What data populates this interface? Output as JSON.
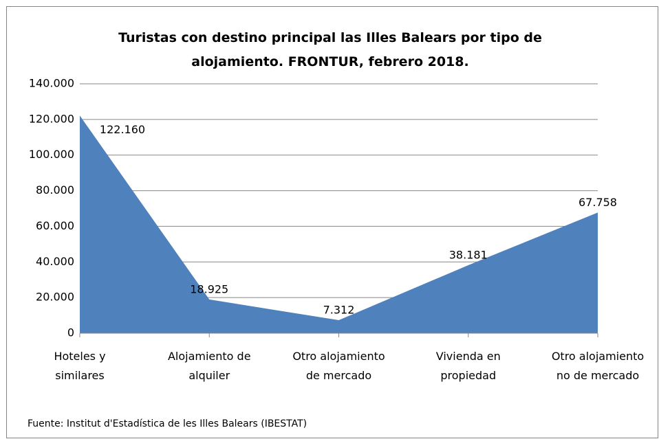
{
  "chart_data": {
    "type": "area",
    "title": "Turistas con destino principal las Illes Balears por tipo de alojamiento. FRONTUR, febrero 2018.",
    "categories": [
      "Hoteles y similares",
      "Alojamiento de alquiler",
      "Otro alojamiento de mercado",
      "Vivienda en propiedad",
      "Otro alojamiento no de mercado"
    ],
    "values": [
      122160,
      18925,
      7312,
      38181,
      67758
    ],
    "value_labels": [
      "122.160",
      "18.925",
      "7.312",
      "38.181",
      "67.758"
    ],
    "color": "#4f81bd",
    "ylim": [
      0,
      140000
    ],
    "yticks": [
      0,
      {
        "value": 20000,
        "label": "20.000"
      },
      {
        "value": 40000,
        "label": "40.000"
      },
      {
        "value": 60000,
        "label": "60.000"
      },
      {
        "value": 80000,
        "label": "80.000"
      },
      {
        "value": 100000,
        "label": "100.000"
      },
      {
        "value": 120000,
        "label": "120.000"
      },
      {
        "value": 140000,
        "label": "140.000"
      }
    ],
    "grid": true,
    "source": "Fuente: Institut d'Estadística de les Illes Balears (IBESTAT)"
  }
}
